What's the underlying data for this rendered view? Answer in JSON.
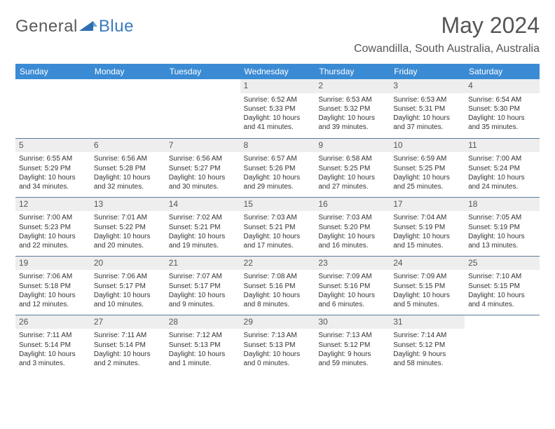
{
  "logo": {
    "part1": "General",
    "part2": "Blue"
  },
  "title": "May 2024",
  "location": "Cowandilla, South Australia, Australia",
  "header_bg": "#3b8bd4",
  "day_headers": [
    "Sunday",
    "Monday",
    "Tuesday",
    "Wednesday",
    "Thursday",
    "Friday",
    "Saturday"
  ],
  "weeks": [
    [
      null,
      null,
      null,
      {
        "n": "1",
        "sr": "6:52 AM",
        "ss": "5:33 PM",
        "d1": "10 hours",
        "d2": "and 41 minutes."
      },
      {
        "n": "2",
        "sr": "6:53 AM",
        "ss": "5:32 PM",
        "d1": "10 hours",
        "d2": "and 39 minutes."
      },
      {
        "n": "3",
        "sr": "6:53 AM",
        "ss": "5:31 PM",
        "d1": "10 hours",
        "d2": "and 37 minutes."
      },
      {
        "n": "4",
        "sr": "6:54 AM",
        "ss": "5:30 PM",
        "d1": "10 hours",
        "d2": "and 35 minutes."
      }
    ],
    [
      {
        "n": "5",
        "sr": "6:55 AM",
        "ss": "5:29 PM",
        "d1": "10 hours",
        "d2": "and 34 minutes."
      },
      {
        "n": "6",
        "sr": "6:56 AM",
        "ss": "5:28 PM",
        "d1": "10 hours",
        "d2": "and 32 minutes."
      },
      {
        "n": "7",
        "sr": "6:56 AM",
        "ss": "5:27 PM",
        "d1": "10 hours",
        "d2": "and 30 minutes."
      },
      {
        "n": "8",
        "sr": "6:57 AM",
        "ss": "5:26 PM",
        "d1": "10 hours",
        "d2": "and 29 minutes."
      },
      {
        "n": "9",
        "sr": "6:58 AM",
        "ss": "5:25 PM",
        "d1": "10 hours",
        "d2": "and 27 minutes."
      },
      {
        "n": "10",
        "sr": "6:59 AM",
        "ss": "5:25 PM",
        "d1": "10 hours",
        "d2": "and 25 minutes."
      },
      {
        "n": "11",
        "sr": "7:00 AM",
        "ss": "5:24 PM",
        "d1": "10 hours",
        "d2": "and 24 minutes."
      }
    ],
    [
      {
        "n": "12",
        "sr": "7:00 AM",
        "ss": "5:23 PM",
        "d1": "10 hours",
        "d2": "and 22 minutes."
      },
      {
        "n": "13",
        "sr": "7:01 AM",
        "ss": "5:22 PM",
        "d1": "10 hours",
        "d2": "and 20 minutes."
      },
      {
        "n": "14",
        "sr": "7:02 AM",
        "ss": "5:21 PM",
        "d1": "10 hours",
        "d2": "and 19 minutes."
      },
      {
        "n": "15",
        "sr": "7:03 AM",
        "ss": "5:21 PM",
        "d1": "10 hours",
        "d2": "and 17 minutes."
      },
      {
        "n": "16",
        "sr": "7:03 AM",
        "ss": "5:20 PM",
        "d1": "10 hours",
        "d2": "and 16 minutes."
      },
      {
        "n": "17",
        "sr": "7:04 AM",
        "ss": "5:19 PM",
        "d1": "10 hours",
        "d2": "and 15 minutes."
      },
      {
        "n": "18",
        "sr": "7:05 AM",
        "ss": "5:19 PM",
        "d1": "10 hours",
        "d2": "and 13 minutes."
      }
    ],
    [
      {
        "n": "19",
        "sr": "7:06 AM",
        "ss": "5:18 PM",
        "d1": "10 hours",
        "d2": "and 12 minutes."
      },
      {
        "n": "20",
        "sr": "7:06 AM",
        "ss": "5:17 PM",
        "d1": "10 hours",
        "d2": "and 10 minutes."
      },
      {
        "n": "21",
        "sr": "7:07 AM",
        "ss": "5:17 PM",
        "d1": "10 hours",
        "d2": "and 9 minutes."
      },
      {
        "n": "22",
        "sr": "7:08 AM",
        "ss": "5:16 PM",
        "d1": "10 hours",
        "d2": "and 8 minutes."
      },
      {
        "n": "23",
        "sr": "7:09 AM",
        "ss": "5:16 PM",
        "d1": "10 hours",
        "d2": "and 6 minutes."
      },
      {
        "n": "24",
        "sr": "7:09 AM",
        "ss": "5:15 PM",
        "d1": "10 hours",
        "d2": "and 5 minutes."
      },
      {
        "n": "25",
        "sr": "7:10 AM",
        "ss": "5:15 PM",
        "d1": "10 hours",
        "d2": "and 4 minutes."
      }
    ],
    [
      {
        "n": "26",
        "sr": "7:11 AM",
        "ss": "5:14 PM",
        "d1": "10 hours",
        "d2": "and 3 minutes."
      },
      {
        "n": "27",
        "sr": "7:11 AM",
        "ss": "5:14 PM",
        "d1": "10 hours",
        "d2": "and 2 minutes."
      },
      {
        "n": "28",
        "sr": "7:12 AM",
        "ss": "5:13 PM",
        "d1": "10 hours",
        "d2": "and 1 minute."
      },
      {
        "n": "29",
        "sr": "7:13 AM",
        "ss": "5:13 PM",
        "d1": "10 hours",
        "d2": "and 0 minutes."
      },
      {
        "n": "30",
        "sr": "7:13 AM",
        "ss": "5:12 PM",
        "d1": "9 hours",
        "d2": "and 59 minutes."
      },
      {
        "n": "31",
        "sr": "7:14 AM",
        "ss": "5:12 PM",
        "d1": "9 hours",
        "d2": "and 58 minutes."
      },
      null
    ]
  ],
  "labels": {
    "sunrise": "Sunrise:",
    "sunset": "Sunset:",
    "daylight": "Daylight:"
  }
}
